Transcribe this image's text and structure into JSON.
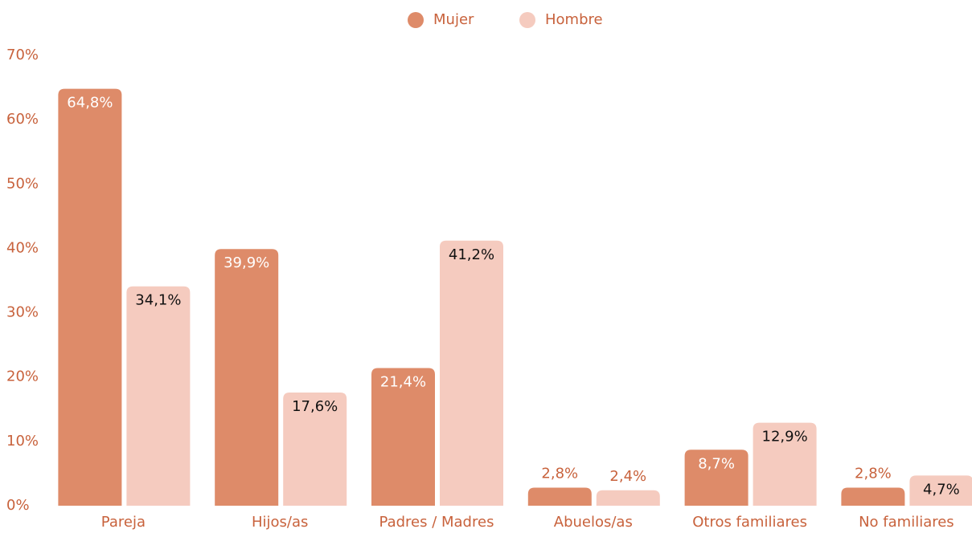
{
  "chart_data": {
    "type": "bar",
    "categories": [
      "Pareja",
      "Hijos/as",
      "Padres / Madres",
      "Abuelos/as",
      "Otros familiares",
      "No familiares"
    ],
    "series": [
      {
        "name": "Mujer",
        "color": "#de8b69",
        "values": [
          64.8,
          39.9,
          21.4,
          2.8,
          8.7,
          2.8
        ],
        "value_labels": [
          "64,8%",
          "39,9%",
          "21,4%",
          "2,8%",
          "8,7%",
          "2,8%"
        ]
      },
      {
        "name": "Hombre",
        "color": "#f5cbbf",
        "values": [
          34.1,
          17.6,
          41.2,
          2.4,
          12.9,
          4.7
        ],
        "value_labels": [
          "34,1%",
          "17,6%",
          "41,2%",
          "2,4%",
          "12,9%",
          "4,7%"
        ]
      }
    ],
    "ylim": [
      0,
      70
    ],
    "yticks": [
      {
        "value": 0,
        "label": "0%"
      },
      {
        "value": 10,
        "label": "10%"
      },
      {
        "value": 20,
        "label": "20%"
      },
      {
        "value": 30,
        "label": "30%"
      },
      {
        "value": 40,
        "label": "40%"
      },
      {
        "value": 50,
        "label": "50%"
      },
      {
        "value": 60,
        "label": "60%"
      },
      {
        "value": 70,
        "label": "70%"
      }
    ],
    "legend": "top",
    "grid": false
  }
}
